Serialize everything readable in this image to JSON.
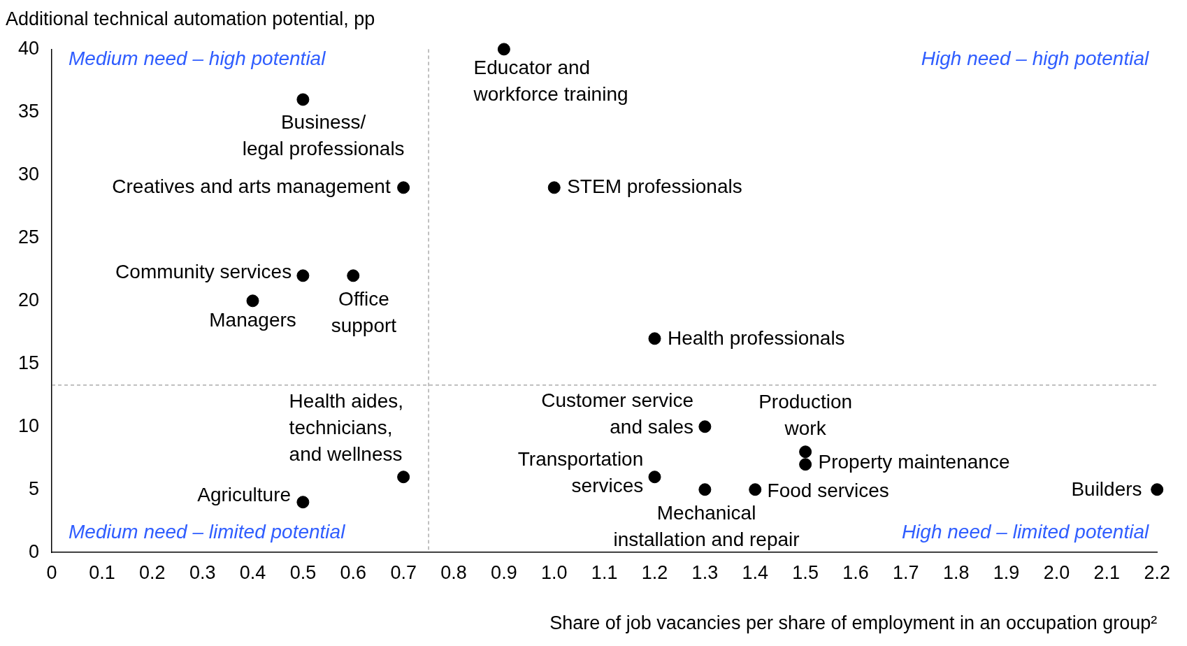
{
  "chart_data": {
    "type": "scatter",
    "ylabel": "Additional technical automation potential, pp",
    "xlabel": "Share of job vacancies per share of employment in an occupation group²",
    "x": [
      0.9,
      0.5,
      0.7,
      1.0,
      0.5,
      0.6,
      0.4,
      1.2,
      1.3,
      1.5,
      1.5,
      0.7,
      1.2,
      1.3,
      1.4,
      2.2,
      0.5
    ],
    "series": [
      {
        "color": "#000000",
        "values": [
          40,
          36,
          29,
          29,
          22,
          22,
          20,
          17,
          10,
          8,
          7,
          6,
          6,
          5,
          5,
          5,
          4
        ]
      }
    ],
    "marker": "circle",
    "grid": false,
    "legend": false,
    "xlim": [
      0,
      2.2
    ],
    "xticks": [
      0,
      0.1,
      0.2,
      0.3,
      0.4,
      0.5,
      0.6,
      0.7,
      0.8,
      0.9,
      {
        "value": 1,
        "label": "1.0"
      },
      1.1,
      1.2,
      1.3,
      1.4,
      1.5,
      1.6,
      1.7,
      1.8,
      1.9,
      {
        "value": 2,
        "label": "2.0"
      },
      2.1,
      2.2
    ],
    "ylim": [
      0,
      40
    ],
    "yticks": [
      0,
      5,
      10,
      15,
      20,
      25,
      30,
      35,
      40
    ],
    "ref_lines": [
      {
        "axis": "x",
        "value": 0.75,
        "color": "#808080",
        "line_style": "dashed"
      },
      {
        "axis": "y",
        "value": 13.3,
        "color": "#808080",
        "line_style": "dashed"
      }
    ],
    "annotations": [
      {
        "text": "Educator and\nworkforce training",
        "x": 0.9,
        "y": 40
      },
      {
        "text": "Business/\nlegal professionals",
        "x": 0.5,
        "y": 36
      },
      {
        "text": "Creatives and arts management",
        "x": 0.7,
        "y": 29
      },
      {
        "text": "STEM professionals",
        "x": 1.0,
        "y": 29
      },
      {
        "text": "Community services",
        "x": 0.5,
        "y": 22
      },
      {
        "text": "Office\nsupport",
        "x": 0.6,
        "y": 22
      },
      {
        "text": "Managers",
        "x": 0.4,
        "y": 20
      },
      {
        "text": "Health professionals",
        "x": 1.2,
        "y": 17
      },
      {
        "text": "Customer service\nand sales",
        "x": 1.3,
        "y": 10
      },
      {
        "text": "Production\nwork",
        "x": 1.5,
        "y": 8
      },
      {
        "text": "Property maintenance",
        "x": 1.5,
        "y": 7
      },
      {
        "text": "Health aides,\ntechnicians,\nand wellness",
        "x": 0.7,
        "y": 6
      },
      {
        "text": "Transportation\nservices",
        "x": 1.2,
        "y": 6
      },
      {
        "text": "Mechanical\ninstallation and repair",
        "x": 1.3,
        "y": 5
      },
      {
        "text": "Food services",
        "x": 1.4,
        "y": 5
      },
      {
        "text": "Builders",
        "x": 2.2,
        "y": 5
      },
      {
        "text": "Agriculture",
        "x": 0.5,
        "y": 4
      },
      "Medium need – high potential",
      "High need – high potential",
      "Medium need – limited potential",
      "High need – limited potential"
    ]
  }
}
